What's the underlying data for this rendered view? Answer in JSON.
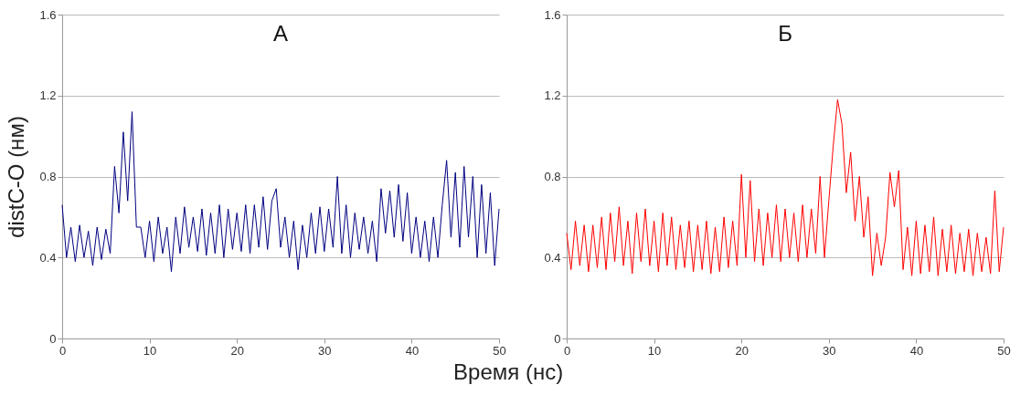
{
  "chart_data": [
    {
      "type": "line",
      "title": "А",
      "ylabel": "distC-O (нм)",
      "xlabel": "Время (нс)",
      "xlim": [
        0,
        50
      ],
      "xticks": [
        0,
        10,
        20,
        30,
        40,
        50
      ],
      "ylim": [
        0,
        1.6
      ],
      "yticks": [
        0,
        0.4,
        0.8,
        1.2,
        1.6
      ],
      "grid": "y",
      "x": [
        0,
        0.5,
        1,
        1.5,
        2,
        2.5,
        3,
        3.5,
        4,
        4.5,
        5,
        5.5,
        6,
        6.5,
        7,
        7.5,
        8,
        8.5,
        9,
        9.5,
        10,
        10.5,
        11,
        11.5,
        12,
        12.5,
        13,
        13.5,
        14,
        14.5,
        15,
        15.5,
        16,
        16.5,
        17,
        17.5,
        18,
        18.5,
        19,
        19.5,
        20,
        20.5,
        21,
        21.5,
        22,
        22.5,
        23,
        23.5,
        24,
        24.5,
        25,
        25.5,
        26,
        26.5,
        27,
        27.5,
        28,
        28.5,
        29,
        29.5,
        30,
        30.5,
        31,
        31.5,
        32,
        32.5,
        33,
        33.5,
        34,
        34.5,
        35,
        35.5,
        36,
        36.5,
        37,
        37.5,
        38,
        38.5,
        39,
        39.5,
        40,
        40.5,
        41,
        41.5,
        42,
        42.5,
        43,
        43.5,
        44,
        44.5,
        45,
        45.5,
        46,
        46.5,
        47,
        47.5,
        48,
        48.5,
        49,
        49.5,
        50
      ],
      "series": [
        {
          "color": "#000080",
          "values": [
            0.66,
            0.4,
            0.55,
            0.38,
            0.56,
            0.4,
            0.53,
            0.36,
            0.55,
            0.39,
            0.54,
            0.42,
            0.85,
            0.62,
            1.02,
            0.68,
            1.12,
            0.55,
            0.55,
            0.4,
            0.58,
            0.38,
            0.6,
            0.42,
            0.55,
            0.33,
            0.6,
            0.42,
            0.65,
            0.45,
            0.6,
            0.43,
            0.64,
            0.41,
            0.62,
            0.42,
            0.66,
            0.4,
            0.64,
            0.44,
            0.62,
            0.43,
            0.66,
            0.42,
            0.66,
            0.45,
            0.7,
            0.44,
            0.68,
            0.74,
            0.45,
            0.6,
            0.4,
            0.58,
            0.34,
            0.56,
            0.4,
            0.62,
            0.42,
            0.65,
            0.43,
            0.64,
            0.45,
            0.8,
            0.42,
            0.66,
            0.4,
            0.62,
            0.44,
            0.6,
            0.42,
            0.58,
            0.38,
            0.74,
            0.52,
            0.73,
            0.5,
            0.76,
            0.48,
            0.72,
            0.42,
            0.6,
            0.4,
            0.58,
            0.38,
            0.6,
            0.4,
            0.66,
            0.88,
            0.5,
            0.82,
            0.45,
            0.85,
            0.5,
            0.8,
            0.4,
            0.76,
            0.42,
            0.72,
            0.36,
            0.64
          ]
        }
      ]
    },
    {
      "type": "line",
      "title": "Б",
      "xlim": [
        0,
        50
      ],
      "xticks": [
        0,
        10,
        20,
        30,
        40,
        50
      ],
      "ylim": [
        0,
        1.6
      ],
      "yticks": [
        0,
        0.4,
        0.8,
        1.2,
        1.6
      ],
      "grid": "y",
      "x": [
        0,
        0.5,
        1,
        1.5,
        2,
        2.5,
        3,
        3.5,
        4,
        4.5,
        5,
        5.5,
        6,
        6.5,
        7,
        7.5,
        8,
        8.5,
        9,
        9.5,
        10,
        10.5,
        11,
        11.5,
        12,
        12.5,
        13,
        13.5,
        14,
        14.5,
        15,
        15.5,
        16,
        16.5,
        17,
        17.5,
        18,
        18.5,
        19,
        19.5,
        20,
        20.5,
        21,
        21.5,
        22,
        22.5,
        23,
        23.5,
        24,
        24.5,
        25,
        25.5,
        26,
        26.5,
        27,
        27.5,
        28,
        28.5,
        29,
        29.5,
        30,
        30.5,
        31,
        31.5,
        32,
        32.5,
        33,
        33.5,
        34,
        34.5,
        35,
        35.5,
        36,
        36.5,
        37,
        37.5,
        38,
        38.5,
        39,
        39.5,
        40,
        40.5,
        41,
        41.5,
        42,
        42.5,
        43,
        43.5,
        44,
        44.5,
        45,
        45.5,
        46,
        46.5,
        47,
        47.5,
        48,
        48.5,
        49,
        49.5,
        50
      ],
      "series": [
        {
          "color": "#ff0000",
          "values": [
            0.52,
            0.34,
            0.58,
            0.36,
            0.56,
            0.33,
            0.56,
            0.35,
            0.6,
            0.34,
            0.62,
            0.38,
            0.65,
            0.36,
            0.58,
            0.32,
            0.62,
            0.38,
            0.64,
            0.36,
            0.58,
            0.33,
            0.62,
            0.36,
            0.6,
            0.34,
            0.56,
            0.35,
            0.58,
            0.33,
            0.56,
            0.34,
            0.58,
            0.32,
            0.55,
            0.33,
            0.6,
            0.35,
            0.58,
            0.36,
            0.81,
            0.4,
            0.78,
            0.38,
            0.64,
            0.36,
            0.62,
            0.4,
            0.66,
            0.38,
            0.64,
            0.4,
            0.62,
            0.38,
            0.66,
            0.4,
            0.64,
            0.42,
            0.8,
            0.4,
            0.68,
            0.95,
            1.18,
            1.06,
            0.72,
            0.92,
            0.58,
            0.8,
            0.5,
            0.7,
            0.31,
            0.52,
            0.36,
            0.5,
            0.82,
            0.65,
            0.83,
            0.34,
            0.55,
            0.31,
            0.58,
            0.32,
            0.56,
            0.33,
            0.6,
            0.31,
            0.54,
            0.33,
            0.56,
            0.32,
            0.52,
            0.33,
            0.54,
            0.31,
            0.52,
            0.33,
            0.5,
            0.32,
            0.73,
            0.33,
            0.55
          ]
        }
      ]
    }
  ]
}
